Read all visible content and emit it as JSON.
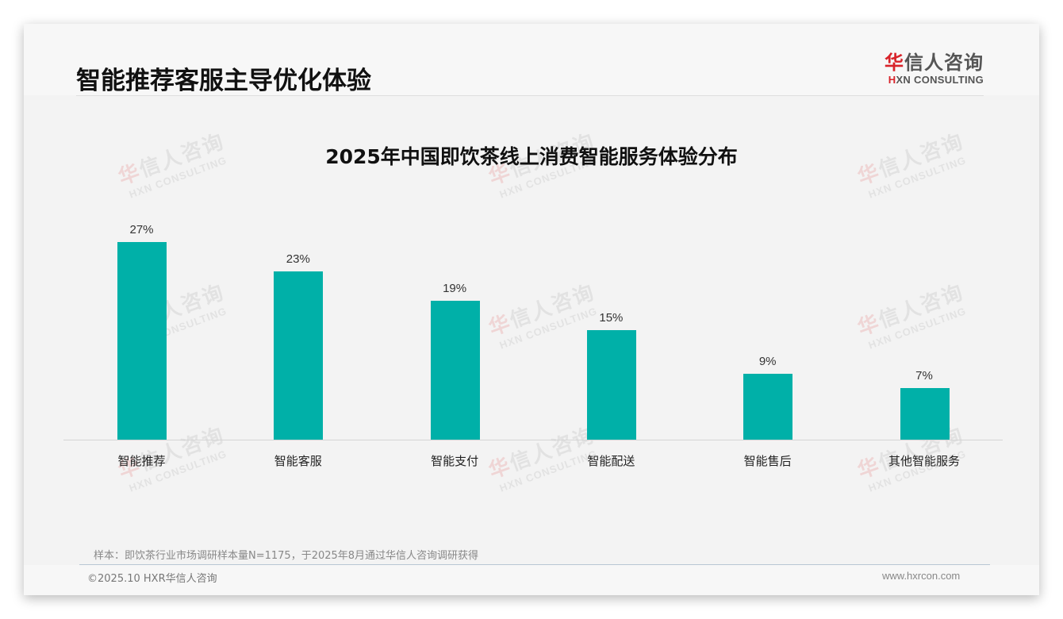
{
  "header": {
    "title": "智能推荐客服主导优化体验",
    "logo_cn_first": "华",
    "logo_cn_rest": "信人咨询",
    "logo_en_first": "H",
    "logo_en_rest": "XN CONSULTING"
  },
  "colors": {
    "bar": "#00b0a8",
    "brand_red": "#d8232a",
    "background": "#f3f3f3"
  },
  "chart_data": {
    "type": "bar",
    "title": "2025年中国即饮茶线上消费智能服务体验分布",
    "categories": [
      "智能推荐",
      "智能客服",
      "智能支付",
      "智能配送",
      "智能售后",
      "其他智能服务"
    ],
    "values": [
      27,
      23,
      19,
      15,
      9,
      7
    ],
    "value_labels": [
      "27%",
      "23%",
      "19%",
      "15%",
      "9%",
      "7%"
    ],
    "unit": "%",
    "xlabel": "",
    "ylabel": "",
    "ylim": [
      0,
      30
    ],
    "grid": false,
    "legend": null
  },
  "watermark": {
    "cn_first": "华",
    "cn_rest": "信人咨询",
    "en": "HXN CONSULTING"
  },
  "footer": {
    "source_note": "样本：即饮茶行业市场调研样本量N=1175，于2025年8月通过华信人咨询调研获得",
    "copyright": "©2025.10 HXR华信人咨询",
    "website": "www.hxrcon.com"
  }
}
